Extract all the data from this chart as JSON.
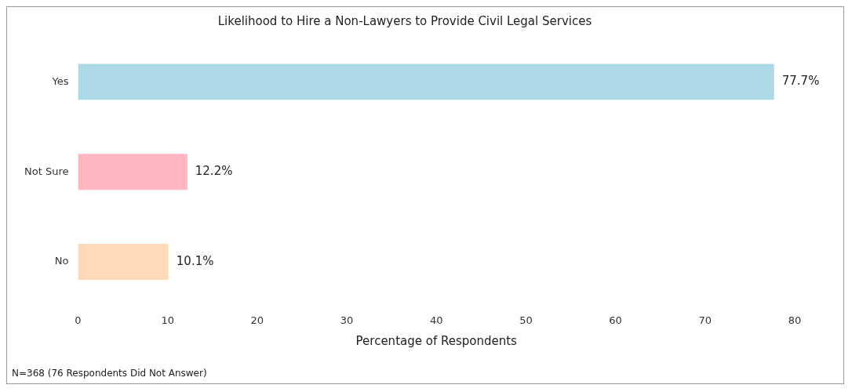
{
  "chart_data": {
    "type": "bar",
    "orientation": "horizontal",
    "title": "Likelihood to Hire a Non-Lawyers to Provide Civil Legal Services",
    "xlabel": "Percentage of Respondents",
    "categories": [
      "Yes",
      "Not Sure",
      "No"
    ],
    "values": [
      77.7,
      12.2,
      10.1
    ],
    "colors": [
      "#add8e6",
      "#ffb6c1",
      "#ffdab9"
    ],
    "value_labels": [
      "77.7%",
      "12.2%",
      "10.1%"
    ],
    "xlim": [
      0,
      80
    ],
    "xticks": [
      0,
      10,
      20,
      30,
      40,
      50,
      60,
      70,
      80
    ],
    "grid": false,
    "legend": false,
    "annotations": [
      "N=368 (76 Respondents Did Not Answer)"
    ]
  }
}
